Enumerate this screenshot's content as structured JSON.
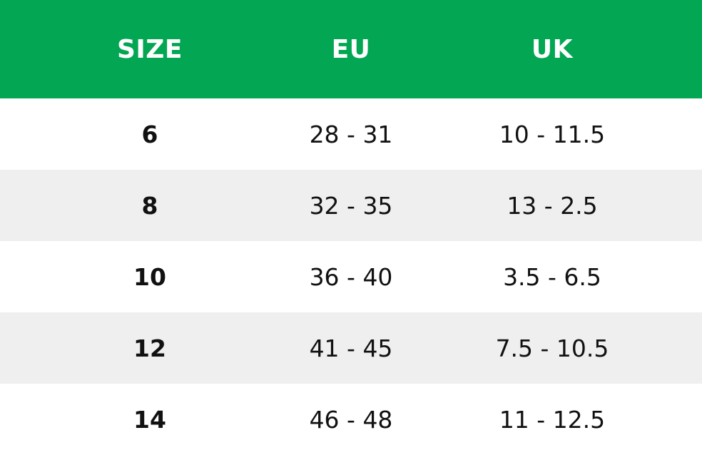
{
  "header": {
    "size_label": "SIZE",
    "eu_label": "EU",
    "uk_label": "UK"
  },
  "rows": [
    {
      "size": "6",
      "eu": "28 - 31",
      "uk": "10 - 11.5"
    },
    {
      "size": "8",
      "eu": "32 - 35",
      "uk": "13 - 2.5"
    },
    {
      "size": "10",
      "eu": "36 - 40",
      "uk": "3.5 - 6.5"
    },
    {
      "size": "12",
      "eu": "41 - 45",
      "uk": "7.5 - 10.5"
    },
    {
      "size": "14",
      "eu": "46 - 48",
      "uk": "11 - 12.5"
    }
  ],
  "colors": {
    "header_bg": "#03a653",
    "header_text": "#ffffff",
    "stripe_bg": "#efefef",
    "row_bg": "#ffffff"
  }
}
